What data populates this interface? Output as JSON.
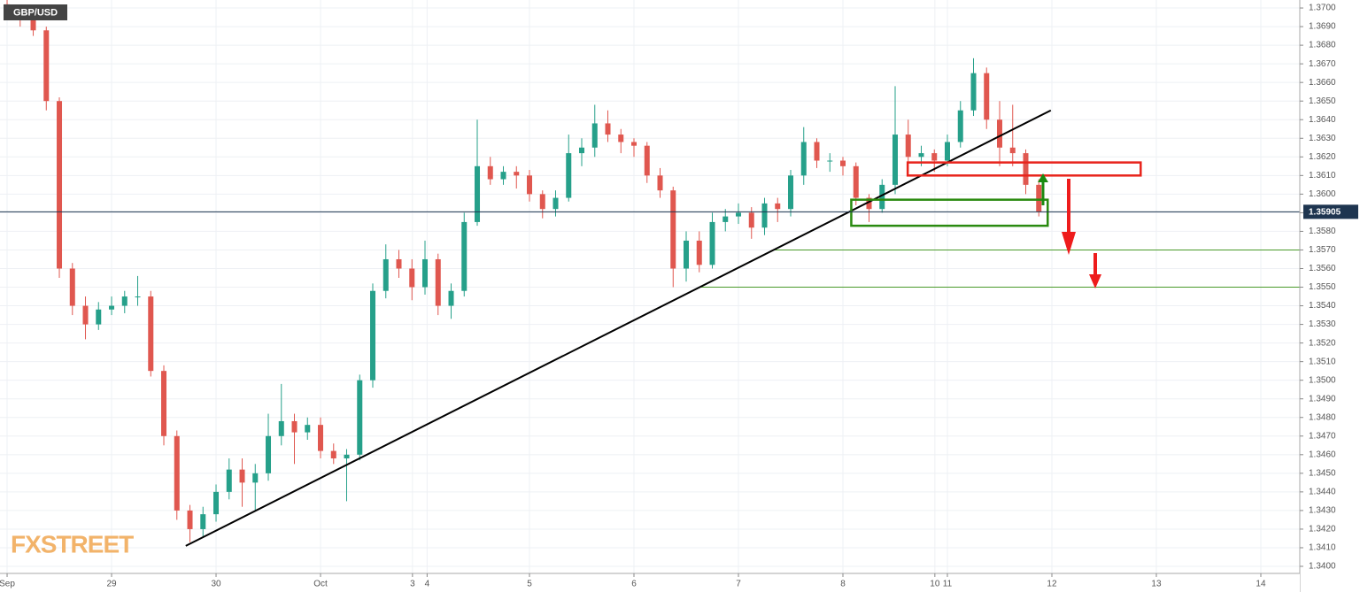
{
  "chart_data": {
    "type": "candlestick",
    "symbol": "GBP/USD",
    "watermark": "FXSTREET",
    "up_color": "#26a08a",
    "down_color": "#e0574f",
    "xlim": [
      -0.068,
      12.373
    ],
    "ylim": [
      1.33962,
      1.37043
    ],
    "xticks": [
      {
        "value": 0,
        "label": "Sep"
      },
      {
        "value": 1,
        "label": "29"
      },
      {
        "value": 2,
        "label": "30"
      },
      {
        "value": 3,
        "label": "Oct"
      },
      {
        "value": 3.88,
        "label": "3"
      },
      {
        "value": 4.02,
        "label": "4"
      },
      {
        "value": 5,
        "label": "5"
      },
      {
        "value": 6,
        "label": "6"
      },
      {
        "value": 7,
        "label": "7"
      },
      {
        "value": 8,
        "label": "8"
      },
      {
        "value": 8.88,
        "label": "10"
      },
      {
        "value": 9,
        "label": "11"
      },
      {
        "value": 10,
        "label": "12"
      },
      {
        "value": 11,
        "label": "13"
      },
      {
        "value": 12,
        "label": "14"
      }
    ],
    "yticks": [
      {
        "value": 1.34,
        "label": "1.3400"
      },
      {
        "value": 1.341,
        "label": "1.3410"
      },
      {
        "value": 1.342,
        "label": "1.3420"
      },
      {
        "value": 1.343,
        "label": "1.3430"
      },
      {
        "value": 1.344,
        "label": "1.3440"
      },
      {
        "value": 1.345,
        "label": "1.3450"
      },
      {
        "value": 1.346,
        "label": "1.3460"
      },
      {
        "value": 1.347,
        "label": "1.3470"
      },
      {
        "value": 1.348,
        "label": "1.3480"
      },
      {
        "value": 1.349,
        "label": "1.3490"
      },
      {
        "value": 1.35,
        "label": "1.3500"
      },
      {
        "value": 1.351,
        "label": "1.3510"
      },
      {
        "value": 1.352,
        "label": "1.3520"
      },
      {
        "value": 1.353,
        "label": "1.3530"
      },
      {
        "value": 1.354,
        "label": "1.3540"
      },
      {
        "value": 1.355,
        "label": "1.3550"
      },
      {
        "value": 1.356,
        "label": "1.3560"
      },
      {
        "value": 1.357,
        "label": "1.3570"
      },
      {
        "value": 1.358,
        "label": "1.3580"
      },
      {
        "value": 1.359,
        "label": "1.3590"
      },
      {
        "value": 1.36,
        "label": "1.3600"
      },
      {
        "value": 1.361,
        "label": "1.3610"
      },
      {
        "value": 1.362,
        "label": "1.3620"
      },
      {
        "value": 1.363,
        "label": "1.3630"
      },
      {
        "value": 1.364,
        "label": "1.3640"
      },
      {
        "value": 1.365,
        "label": "1.3650"
      },
      {
        "value": 1.366,
        "label": "1.3660"
      },
      {
        "value": 1.367,
        "label": "1.3670"
      },
      {
        "value": 1.368,
        "label": "1.3680"
      },
      {
        "value": 1.369,
        "label": "1.3690"
      },
      {
        "value": 1.37,
        "label": "1.3700"
      }
    ],
    "last_price": 1.35905,
    "x": [
      0,
      0.125,
      0.25,
      0.375,
      0.5,
      0.625,
      0.75,
      0.875,
      1,
      1.125,
      1.25,
      1.375,
      1.5,
      1.625,
      1.75,
      1.875,
      2,
      2.125,
      2.25,
      2.375,
      2.5,
      2.625,
      2.75,
      2.875,
      3,
      3.125,
      3.25,
      3.375,
      3.5,
      3.625,
      3.75,
      3.875,
      4,
      4.125,
      4.25,
      4.375,
      4.5,
      4.625,
      4.75,
      4.875,
      5,
      5.125,
      5.25,
      5.375,
      5.5,
      5.625,
      5.75,
      5.875,
      6,
      6.125,
      6.25,
      6.375,
      6.5,
      6.625,
      6.75,
      6.875,
      7,
      7.125,
      7.25,
      7.375,
      7.5,
      7.625,
      7.75,
      7.875,
      8,
      8.125,
      8.25,
      8.375,
      8.5,
      8.625,
      8.75,
      8.875,
      9,
      9.125,
      9.25,
      9.375,
      9.5,
      9.625,
      9.75,
      9.875
    ],
    "open": [
      1.3702,
      1.3698,
      1.3695,
      1.3688,
      1.365,
      1.356,
      1.354,
      1.353,
      1.3538,
      1.354,
      1.3545,
      1.3545,
      1.3505,
      1.347,
      1.343,
      1.342,
      1.3428,
      1.344,
      1.3452,
      1.3445,
      1.345,
      1.347,
      1.3478,
      1.3472,
      1.3476,
      1.3462,
      1.3458,
      1.346,
      1.35,
      1.3548,
      1.3565,
      1.356,
      1.355,
      1.3565,
      1.354,
      1.3548,
      1.3585,
      1.3615,
      1.3608,
      1.3612,
      1.361,
      1.36,
      1.3592,
      1.3598,
      1.3622,
      1.3625,
      1.3638,
      1.3632,
      1.3628,
      1.3626,
      1.361,
      1.3602,
      1.356,
      1.3575,
      1.3562,
      1.3585,
      1.3588,
      1.359,
      1.3582,
      1.3595,
      1.3592,
      1.361,
      1.3628,
      1.3618,
      1.3618,
      1.3615,
      1.3598,
      1.3592,
      1.3605,
      1.3632,
      1.362,
      1.3622,
      1.3618,
      1.3628,
      1.3645,
      1.3665,
      1.364,
      1.3625,
      1.3622,
      1.3605
    ],
    "high": [
      1.3706,
      1.37,
      1.3697,
      1.369,
      1.3652,
      1.3563,
      1.3545,
      1.3542,
      1.3545,
      1.3548,
      1.3556,
      1.3548,
      1.3508,
      1.3473,
      1.3433,
      1.3432,
      1.3444,
      1.3458,
      1.3458,
      1.3455,
      1.3482,
      1.3498,
      1.3482,
      1.348,
      1.348,
      1.3466,
      1.3463,
      1.3503,
      1.3552,
      1.3573,
      1.357,
      1.3565,
      1.3575,
      1.3568,
      1.3552,
      1.359,
      1.364,
      1.362,
      1.3615,
      1.3615,
      1.3613,
      1.3602,
      1.3602,
      1.3632,
      1.363,
      1.3648,
      1.3645,
      1.3635,
      1.363,
      1.3628,
      1.3614,
      1.3604,
      1.358,
      1.358,
      1.359,
      1.3592,
      1.3595,
      1.3593,
      1.3598,
      1.3598,
      1.3613,
      1.3636,
      1.363,
      1.3622,
      1.362,
      1.3617,
      1.36,
      1.3608,
      1.3658,
      1.364,
      1.3626,
      1.3624,
      1.3632,
      1.365,
      1.3673,
      1.3668,
      1.365,
      1.3648,
      1.3624,
      1.3608
    ],
    "low": [
      1.3694,
      1.369,
      1.3685,
      1.3645,
      1.3555,
      1.3535,
      1.3522,
      1.3527,
      1.3535,
      1.3536,
      1.354,
      1.3502,
      1.3465,
      1.3425,
      1.3413,
      1.3416,
      1.3424,
      1.3436,
      1.3432,
      1.343,
      1.3446,
      1.3465,
      1.3455,
      1.3468,
      1.3458,
      1.3455,
      1.3435,
      1.3457,
      1.3496,
      1.3544,
      1.3555,
      1.3543,
      1.3546,
      1.3535,
      1.3533,
      1.3545,
      1.3583,
      1.3605,
      1.3605,
      1.3603,
      1.3596,
      1.3587,
      1.3588,
      1.3596,
      1.3615,
      1.362,
      1.3628,
      1.3622,
      1.362,
      1.3606,
      1.3598,
      1.355,
      1.3553,
      1.3558,
      1.356,
      1.358,
      1.3584,
      1.3576,
      1.3578,
      1.3585,
      1.3588,
      1.3605,
      1.3614,
      1.3612,
      1.361,
      1.3594,
      1.3585,
      1.359,
      1.36,
      1.3612,
      1.3615,
      1.3612,
      1.3615,
      1.3625,
      1.3642,
      1.3635,
      1.3615,
      1.3615,
      1.36,
      1.3588
    ],
    "close": [
      1.3698,
      1.3695,
      1.3688,
      1.365,
      1.356,
      1.354,
      1.353,
      1.3538,
      1.354,
      1.3545,
      1.3545,
      1.3505,
      1.347,
      1.343,
      1.342,
      1.3428,
      1.344,
      1.3452,
      1.3445,
      1.345,
      1.347,
      1.3478,
      1.3472,
      1.3476,
      1.3462,
      1.3458,
      1.346,
      1.35,
      1.3548,
      1.3565,
      1.356,
      1.355,
      1.3565,
      1.354,
      1.3548,
      1.3585,
      1.3615,
      1.3608,
      1.3612,
      1.361,
      1.36,
      1.3592,
      1.3598,
      1.3622,
      1.3625,
      1.3638,
      1.3632,
      1.3628,
      1.3626,
      1.361,
      1.3602,
      1.356,
      1.3575,
      1.3562,
      1.3585,
      1.3588,
      1.359,
      1.3582,
      1.3595,
      1.3592,
      1.361,
      1.3628,
      1.3618,
      1.3618,
      1.3615,
      1.3598,
      1.3592,
      1.3605,
      1.3632,
      1.362,
      1.3622,
      1.3618,
      1.3628,
      1.3645,
      1.3665,
      1.364,
      1.3625,
      1.3622,
      1.3605,
      1.35905
    ],
    "trendline": {
      "x": [
        1.71,
        9.99
      ],
      "y": [
        1.3411,
        1.3645
      ],
      "color": "#000000"
    },
    "hlines": [
      {
        "value": 1.357,
        "from": 7.35,
        "color": "#4a9a2a"
      },
      {
        "value": 1.355,
        "from": 6.63,
        "color": "#4a9a2a"
      }
    ],
    "zones": [
      {
        "x": [
          8.62,
          10.85
        ],
        "y": [
          1.361,
          1.3617
        ],
        "color": "#e8241c"
      },
      {
        "x": [
          8.08,
          9.96
        ],
        "y": [
          1.3583,
          1.3597
        ],
        "color": "#2a8a10"
      }
    ]
  }
}
